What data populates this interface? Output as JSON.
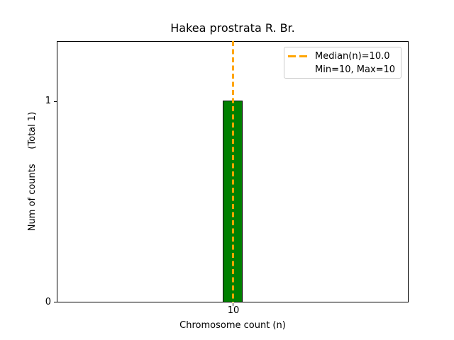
{
  "chart_data": {
    "type": "bar",
    "title": "Hakea prostrata R. Br.",
    "xlabel": "Chromosome count (n)",
    "ylabel": "Num of counts     (Total 1)",
    "categories": [
      10
    ],
    "values": [
      1
    ],
    "xticks": [
      "10"
    ],
    "yticks": [
      "0",
      "1"
    ],
    "ylim": [
      0,
      1.3
    ],
    "grid": false,
    "total_counts": 1,
    "stats": {
      "median": 10.0,
      "min": 10,
      "max": 10
    },
    "median_line": {
      "value": 10.0,
      "style": "dashed",
      "color": "#ffa500"
    },
    "bar_style": {
      "fill_color": "#008000",
      "edge_color": "#000000"
    },
    "legend": {
      "position": "upper right",
      "border_color": "#cccccc",
      "entries": [
        {
          "label": "Median(n)=10.0",
          "marker": "orange-dashed-line"
        },
        {
          "label": "Min=10, Max=10",
          "marker": "none"
        }
      ]
    },
    "text_color": "#000000",
    "background_color": "#ffffff"
  }
}
